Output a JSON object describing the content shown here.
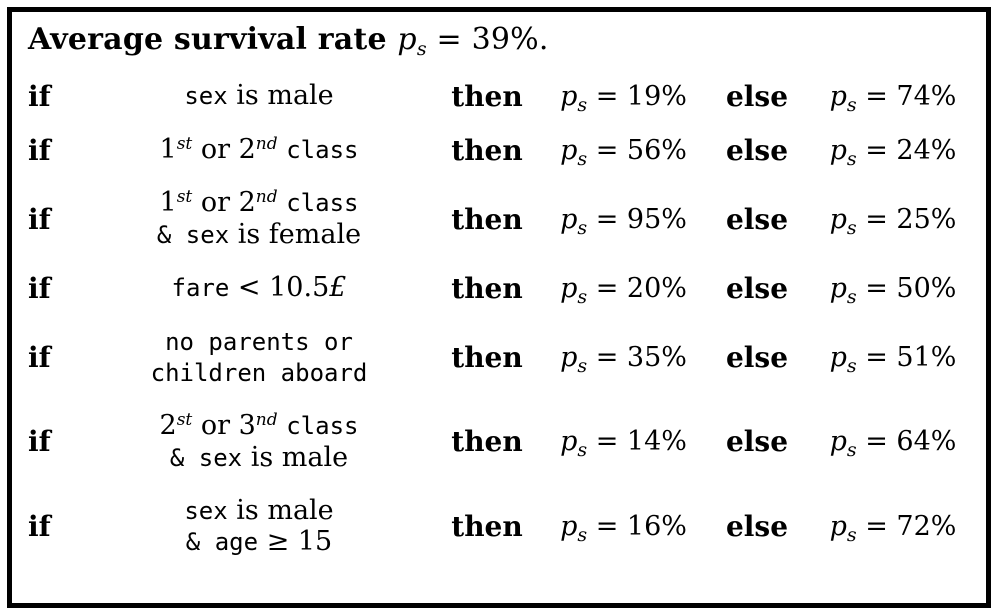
{
  "title": {
    "bold": "Average survival rate",
    "var": "p",
    "sub": "s",
    "rest": " = 39%."
  },
  "keywords": {
    "if": "if",
    "then": "then",
    "else": "else"
  },
  "ps": {
    "var": "p",
    "sub": "s",
    "eq": " = "
  },
  "rules": [
    {
      "condition": [
        [
          {
            "k": "tt",
            "t": "sex"
          },
          {
            "k": "rm",
            "t": " is male"
          }
        ]
      ],
      "then": "19%",
      "else": "74%"
    },
    {
      "condition": [
        [
          {
            "k": "rm",
            "t": "1"
          },
          {
            "k": "sup",
            "t": "st"
          },
          {
            "k": "rm",
            "t": " or 2"
          },
          {
            "k": "sup",
            "t": "nd"
          },
          {
            "k": "rm",
            "t": " "
          },
          {
            "k": "tt",
            "t": "class"
          }
        ]
      ],
      "then": "56%",
      "else": "24%"
    },
    {
      "condition": [
        [
          {
            "k": "rm",
            "t": "1"
          },
          {
            "k": "sup",
            "t": "st"
          },
          {
            "k": "rm",
            "t": " or 2"
          },
          {
            "k": "sup",
            "t": "nd"
          },
          {
            "k": "rm",
            "t": " "
          },
          {
            "k": "tt",
            "t": "class"
          }
        ],
        [
          {
            "k": "tt",
            "t": "& sex"
          },
          {
            "k": "rm",
            "t": " is female"
          }
        ]
      ],
      "then": "95%",
      "else": "25%"
    },
    {
      "condition": [
        [
          {
            "k": "tt",
            "t": "fare"
          },
          {
            "k": "rm",
            "t": " < 10.5"
          },
          {
            "k": "it",
            "t": "£"
          }
        ]
      ],
      "then": "20%",
      "else": "50%"
    },
    {
      "condition": [
        [
          {
            "k": "tt",
            "t": "no parents or"
          }
        ],
        [
          {
            "k": "tt",
            "t": "children aboard"
          }
        ]
      ],
      "then": "35%",
      "else": "51%"
    },
    {
      "condition": [
        [
          {
            "k": "rm",
            "t": "2"
          },
          {
            "k": "sup",
            "t": "st"
          },
          {
            "k": "rm",
            "t": " or 3"
          },
          {
            "k": "sup",
            "t": "nd"
          },
          {
            "k": "rm",
            "t": " "
          },
          {
            "k": "tt",
            "t": "class"
          }
        ],
        [
          {
            "k": "tt",
            "t": "& sex"
          },
          {
            "k": "rm",
            "t": " is male"
          }
        ]
      ],
      "then": "14%",
      "else": "64%"
    },
    {
      "condition": [
        [
          {
            "k": "tt",
            "t": "sex"
          },
          {
            "k": "rm",
            "t": " is male"
          }
        ],
        [
          {
            "k": "tt",
            "t": "& age"
          },
          {
            "k": "rm",
            "t": " ≥ 15"
          }
        ]
      ],
      "then": "16%",
      "else": "72%"
    }
  ]
}
